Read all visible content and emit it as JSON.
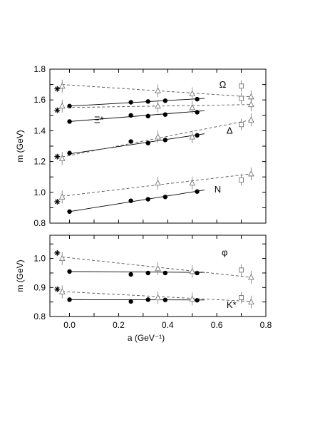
{
  "chart_data": [
    {
      "type": "scatter",
      "panel": "upper",
      "ylabel": "m (GeV)",
      "xlim": [
        -0.08,
        0.8
      ],
      "ylim": [
        0.8,
        1.8
      ],
      "yticks": [
        "0.8",
        "1.0",
        "1.2",
        "1.4",
        "1.6",
        "1.8"
      ],
      "xticks_labeled": false,
      "series_labels": [
        {
          "name": "Ω",
          "x": 0.61,
          "y": 1.68
        },
        {
          "name": "Ξ*",
          "x": 0.1,
          "y": 1.45
        },
        {
          "name": "Δ",
          "x": 0.64,
          "y": 1.38
        },
        {
          "name": "N",
          "x": 0.59,
          "y": 1.0
        }
      ],
      "series": [
        {
          "name": "Ω",
          "style": "filled-circle",
          "points": [
            [
              0.0,
              1.56
            ],
            [
              0.25,
              1.585
            ],
            [
              0.32,
              1.59
            ],
            [
              0.39,
              1.595
            ],
            [
              0.52,
              1.605
            ]
          ],
          "fit": [
            [
              0.0,
              1.56
            ],
            [
              0.55,
              1.61
            ]
          ]
        },
        {
          "name": "Ω",
          "style": "open-triangle",
          "points": [
            [
              -0.03,
              1.69
            ],
            [
              0.36,
              1.66
            ],
            [
              0.5,
              1.64
            ],
            [
              0.74,
              1.62
            ]
          ],
          "fit": [
            [
              -0.03,
              1.7
            ],
            [
              0.74,
              1.62
            ]
          ]
        },
        {
          "name": "Ω",
          "style": "open-square",
          "points": [
            [
              0.7,
              1.69
            ]
          ]
        },
        {
          "name": "Ξ*",
          "style": "filled-circle",
          "points": [
            [
              0.0,
              1.46
            ],
            [
              0.25,
              1.5
            ],
            [
              0.32,
              1.495
            ],
            [
              0.39,
              1.505
            ],
            [
              0.52,
              1.52
            ]
          ],
          "fit": [
            [
              0.0,
              1.46
            ],
            [
              0.55,
              1.53
            ]
          ]
        },
        {
          "name": "Ξ*",
          "style": "open-triangle",
          "points": [
            [
              -0.03,
              1.56
            ],
            [
              0.36,
              1.56
            ],
            [
              0.5,
              1.55
            ],
            [
              0.74,
              1.57
            ]
          ],
          "fit": [
            [
              -0.03,
              1.55
            ],
            [
              0.74,
              1.57
            ]
          ]
        },
        {
          "name": "Ξ*",
          "style": "open-square",
          "points": [
            [
              0.7,
              1.61
            ]
          ]
        },
        {
          "name": "Δ",
          "style": "filled-circle",
          "points": [
            [
              0.0,
              1.255
            ],
            [
              0.25,
              1.33
            ],
            [
              0.32,
              1.32
            ],
            [
              0.39,
              1.34
            ],
            [
              0.52,
              1.37
            ]
          ],
          "fit": [
            [
              0.0,
              1.25
            ],
            [
              0.55,
              1.38
            ]
          ]
        },
        {
          "name": "Δ",
          "style": "open-triangle",
          "points": [
            [
              -0.03,
              1.22
            ],
            [
              0.36,
              1.36
            ],
            [
              0.5,
              1.36
            ],
            [
              0.74,
              1.47
            ]
          ],
          "fit": [
            [
              -0.03,
              1.23
            ],
            [
              0.74,
              1.47
            ]
          ]
        },
        {
          "name": "Δ",
          "style": "open-square",
          "points": [
            [
              0.7,
              1.44
            ]
          ]
        },
        {
          "name": "N",
          "style": "filled-circle",
          "points": [
            [
              0.0,
              0.875
            ],
            [
              0.25,
              0.945
            ],
            [
              0.32,
              0.955
            ],
            [
              0.39,
              0.97
            ],
            [
              0.52,
              1.005
            ]
          ],
          "fit": [
            [
              0.0,
              0.875
            ],
            [
              0.55,
              1.015
            ]
          ]
        },
        {
          "name": "N",
          "style": "open-triangle",
          "points": [
            [
              -0.03,
              0.97
            ],
            [
              0.36,
              1.06
            ],
            [
              0.5,
              1.06
            ],
            [
              0.74,
              1.12
            ]
          ],
          "fit": [
            [
              -0.03,
              0.975
            ],
            [
              0.74,
              1.12
            ]
          ]
        },
        {
          "name": "N",
          "style": "open-square",
          "points": [
            [
              0.7,
              1.08
            ]
          ]
        }
      ],
      "physical_points": {
        "style": "asterisk",
        "points": [
          [
            -0.05,
            1.672
          ],
          [
            -0.05,
            1.533
          ],
          [
            -0.05,
            1.232
          ],
          [
            -0.05,
            0.939
          ]
        ]
      }
    },
    {
      "type": "scatter",
      "panel": "lower",
      "xlabel": "a (GeV⁻¹)",
      "ylabel": "m (GeV)",
      "xlim": [
        -0.08,
        0.8
      ],
      "ylim": [
        0.8,
        1.08
      ],
      "xticks": [
        "0.0",
        "0.2",
        "0.4",
        "0.6",
        "0.8"
      ],
      "xtick_values": [
        0.0,
        0.2,
        0.4,
        0.6,
        0.8
      ],
      "yticks": [
        "0.8",
        "0.9",
        "1.0"
      ],
      "series_labels": [
        {
          "name": "φ",
          "x": 0.62,
          "y": 1.01
        },
        {
          "name": "K*",
          "x": 0.64,
          "y": 0.83
        }
      ],
      "series": [
        {
          "name": "φ",
          "style": "filled-circle",
          "points": [
            [
              0.0,
              0.955
            ],
            [
              0.25,
              0.945
            ],
            [
              0.32,
              0.95
            ],
            [
              0.39,
              0.95
            ],
            [
              0.52,
              0.95
            ]
          ],
          "fit": [
            [
              0.0,
              0.955
            ],
            [
              0.55,
              0.952
            ]
          ]
        },
        {
          "name": "φ",
          "style": "open-triangle",
          "points": [
            [
              -0.03,
              1.0
            ],
            [
              0.36,
              0.965
            ],
            [
              0.5,
              0.955
            ],
            [
              0.74,
              0.935
            ]
          ],
          "fit": [
            [
              -0.03,
              1.005
            ],
            [
              0.74,
              0.935
            ]
          ]
        },
        {
          "name": "φ",
          "style": "open-square",
          "points": [
            [
              0.7,
              0.96
            ]
          ]
        },
        {
          "name": "K*",
          "style": "filled-circle",
          "points": [
            [
              0.0,
              0.858
            ],
            [
              0.25,
              0.852
            ],
            [
              0.32,
              0.858
            ],
            [
              0.39,
              0.857
            ],
            [
              0.52,
              0.856
            ]
          ],
          "fit": [
            [
              0.0,
              0.858
            ],
            [
              0.55,
              0.857
            ]
          ]
        },
        {
          "name": "K*",
          "style": "open-triangle",
          "points": [
            [
              -0.03,
              0.885
            ],
            [
              0.36,
              0.865
            ],
            [
              0.5,
              0.86
            ],
            [
              0.74,
              0.85
            ]
          ],
          "fit": [
            [
              -0.03,
              0.886
            ],
            [
              0.74,
              0.852
            ]
          ]
        },
        {
          "name": "K*",
          "style": "open-square",
          "points": [
            [
              0.7,
              0.865
            ]
          ]
        }
      ],
      "physical_points": {
        "style": "asterisk",
        "points": [
          [
            -0.05,
            1.019
          ],
          [
            -0.05,
            0.894
          ]
        ]
      }
    }
  ]
}
